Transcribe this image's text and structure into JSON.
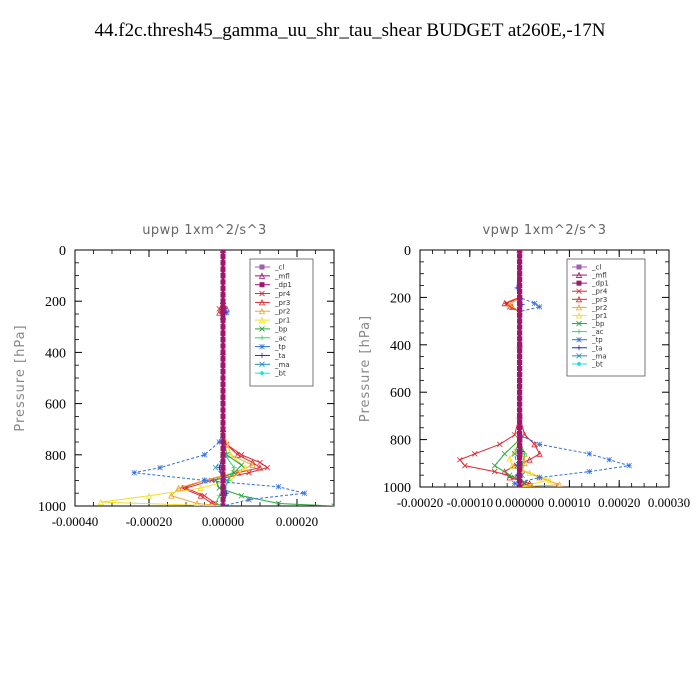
{
  "title": "44.f2c.thresh45_gamma_uu_shr_tau_shear  BUDGET at260E,-17N",
  "legend_labels": [
    "_cl",
    "_mfl",
    "_dp1",
    "_pr4",
    "_pr3",
    "_pr2",
    "_pr1",
    "_bp",
    "_ac",
    "_tp",
    "_ta",
    "_ma",
    "_bt"
  ],
  "legend_colors": [
    "#9f5fb0",
    "#a0166c",
    "#a0166c",
    "#e0262e",
    "#e0262e",
    "#f2a62c",
    "#f0e02a",
    "#25a83a",
    "#2fd86a",
    "#2f6fe0",
    "#2727d0",
    "#1f8fb8",
    "#1ae0e0"
  ],
  "chart_data": [
    {
      "type": "line",
      "title": "upwp   1xm^2/s^3",
      "ylabel": "Pressure [hPa]",
      "xlim": [
        -0.0004,
        0.0003
      ],
      "ylim": [
        1000,
        0
      ],
      "xticks": [
        "-0.00040",
        "-0.00020",
        "0.00000",
        "0.00020"
      ],
      "yticks": [
        "0",
        "200",
        "400",
        "600",
        "800",
        "1000"
      ],
      "series": [
        {
          "name": "_cl",
          "y": [
            0,
            200,
            230,
            260,
            400,
            700,
            800,
            850,
            900,
            950,
            1000
          ],
          "x": [
            0,
            0,
            0,
            0,
            0,
            0,
            0,
            0,
            0,
            0,
            0
          ]
        },
        {
          "name": "_mfl",
          "y": [
            0,
            200,
            230,
            260,
            400,
            700,
            800,
            850,
            900,
            950,
            1000
          ],
          "x": [
            0,
            0,
            0,
            0,
            0,
            0,
            0,
            0,
            0,
            0,
            0
          ]
        },
        {
          "name": "_dp1",
          "y": [
            0,
            200,
            230,
            260,
            400,
            700,
            800,
            850,
            900,
            950,
            1000
          ],
          "x": [
            0,
            0,
            0,
            0,
            0,
            0,
            0,
            0,
            0,
            0,
            0
          ]
        },
        {
          "name": "_pr4",
          "y": [
            0,
            200,
            230,
            245,
            260,
            700,
            760,
            800,
            830,
            850,
            870,
            900,
            930,
            960,
            990,
            1000
          ],
          "x": [
            0,
            0,
            -1e-05,
            5e-06,
            0,
            0,
            1e-05,
            5e-05,
            0.0001,
            0.00012,
            7e-05,
            -3e-05,
            -0.0001,
            -5e-05,
            -2e-05,
            0
          ]
        },
        {
          "name": "_pr3",
          "y": [
            0,
            200,
            230,
            245,
            260,
            700,
            760,
            800,
            830,
            850,
            870,
            900,
            930,
            960,
            990,
            1000
          ],
          "x": [
            0,
            0,
            1e-05,
            -1e-05,
            0,
            0,
            1e-05,
            4e-05,
            8e-05,
            0.0001,
            4e-05,
            -5e-05,
            -0.00011,
            -6e-05,
            -3e-05,
            0
          ]
        },
        {
          "name": "_pr2",
          "y": [
            0,
            700,
            800,
            840,
            870,
            900,
            930,
            960,
            990,
            1000
          ],
          "x": [
            0,
            0,
            2e-05,
            8e-05,
            3e-05,
            -5e-05,
            -0.00012,
            -0.00014,
            -7e-05,
            0
          ]
        },
        {
          "name": "_pr1",
          "y": [
            0,
            700,
            800,
            850,
            900,
            930,
            960,
            985,
            1000
          ],
          "x": [
            0,
            0,
            2e-05,
            6e-05,
            2e-05,
            -6e-05,
            -0.0002,
            -0.00033,
            0
          ]
        },
        {
          "name": "_bp",
          "y": [
            0,
            700,
            800,
            840,
            870,
            900,
            930,
            960,
            990,
            1000
          ],
          "x": [
            0,
            0,
            1e-05,
            5e-05,
            3e-05,
            -2e-05,
            -1e-05,
            5e-05,
            0.00015,
            0.0003
          ]
        },
        {
          "name": "_ac",
          "y": [
            0,
            700,
            800,
            850,
            900,
            930,
            960,
            990,
            1000
          ],
          "x": [
            0,
            0,
            5e-06,
            3e-05,
            1.5e-05,
            5e-06,
            -1e-05,
            -2e-05,
            0
          ]
        },
        {
          "name": "_tp",
          "y": [
            0,
            200,
            230,
            245,
            260,
            700,
            750,
            800,
            850,
            870,
            900,
            925,
            950,
            975,
            1000
          ],
          "x": [
            0,
            0,
            5e-06,
            1e-05,
            0,
            0,
            -1e-05,
            -5e-05,
            -0.00017,
            -0.00024,
            -5e-05,
            0.00015,
            0.00022,
            7e-05,
            0
          ]
        },
        {
          "name": "_ta",
          "y": [
            0,
            200,
            230,
            245,
            260,
            700,
            800,
            850,
            900,
            950,
            1000
          ],
          "x": [
            0,
            0,
            0,
            5e-06,
            0,
            0,
            0,
            -1e-05,
            0,
            1e-05,
            0
          ]
        },
        {
          "name": "_ma",
          "y": [
            0,
            700,
            800,
            850,
            900,
            950,
            1000
          ],
          "x": [
            0,
            0,
            5e-06,
            -2e-05,
            1e-05,
            5e-06,
            0
          ]
        },
        {
          "name": "_bt",
          "y": [
            0,
            200,
            400,
            700,
            800,
            850,
            900,
            950,
            1000
          ],
          "x": [
            0,
            0,
            0,
            0,
            0,
            0,
            0,
            0,
            0
          ]
        }
      ]
    },
    {
      "type": "line",
      "title": "vpwp   1xm^2/s^3",
      "ylabel": "Pressure [hPa]",
      "xlim": [
        -0.0002,
        0.0003
      ],
      "ylim": [
        1000,
        0
      ],
      "xticks": [
        "-0.00020",
        "-0.00010",
        "0.000000",
        "0.00010",
        "0.00020",
        "0.00030"
      ],
      "yticks": [
        "0",
        "200",
        "400",
        "600",
        "800",
        "1000"
      ],
      "series": [
        {
          "name": "_cl",
          "y": [
            0,
            200,
            400,
            700,
            800,
            850,
            900,
            950,
            1000
          ],
          "x": [
            0,
            0,
            0,
            0,
            0,
            0,
            0,
            0,
            0
          ]
        },
        {
          "name": "_mfl",
          "y": [
            0,
            200,
            400,
            700,
            800,
            850,
            900,
            950,
            1000
          ],
          "x": [
            0,
            0,
            0,
            0,
            0,
            0,
            0,
            0,
            0
          ]
        },
        {
          "name": "_dp1",
          "y": [
            0,
            200,
            400,
            700,
            800,
            850,
            900,
            950,
            1000
          ],
          "x": [
            0,
            0,
            0,
            0,
            0,
            0,
            0,
            0,
            0
          ]
        },
        {
          "name": "_pr4",
          "y": [
            0,
            200,
            225,
            240,
            260,
            700,
            780,
            820,
            860,
            885,
            910,
            935,
            960,
            985,
            1000
          ],
          "x": [
            0,
            0,
            -2.5e-05,
            -2e-05,
            0,
            0,
            -1e-05,
            -4e-05,
            -9e-05,
            -0.00012,
            -0.00011,
            -5e-05,
            -1e-05,
            1e-05,
            0
          ]
        },
        {
          "name": "_pr3",
          "y": [
            0,
            200,
            225,
            240,
            260,
            700,
            780,
            820,
            860,
            885,
            910,
            935,
            960,
            985,
            1000
          ],
          "x": [
            0,
            0,
            -3e-05,
            -1.5e-05,
            0,
            0,
            1e-05,
            3e-05,
            4e-05,
            2e-05,
            -1e-05,
            -3e-05,
            -2e-05,
            2e-05,
            0
          ]
        },
        {
          "name": "_pr2",
          "y": [
            0,
            200,
            230,
            260,
            700,
            800,
            860,
            900,
            930,
            960,
            990,
            1000
          ],
          "x": [
            0,
            0,
            -2e-05,
            0,
            0,
            0,
            1e-05,
            1e-05,
            5e-06,
            4e-05,
            8e-05,
            0
          ]
        },
        {
          "name": "_pr1",
          "y": [
            0,
            700,
            800,
            850,
            880,
            910,
            940,
            970,
            1000
          ],
          "x": [
            0,
            0,
            0,
            -1e-05,
            -2e-05,
            -1.5e-05,
            2e-05,
            6e-05,
            0
          ]
        },
        {
          "name": "_bp",
          "y": [
            0,
            700,
            800,
            860,
            910,
            950,
            980,
            1000
          ],
          "x": [
            0,
            0,
            0,
            -3e-05,
            -5e-05,
            -2e-05,
            1e-05,
            0
          ]
        },
        {
          "name": "_ac",
          "y": [
            0,
            700,
            800,
            860,
            910,
            950,
            1000
          ],
          "x": [
            0,
            0,
            0,
            1e-05,
            5e-06,
            -5e-06,
            0
          ]
        },
        {
          "name": "_tp",
          "y": [
            0,
            160,
            200,
            225,
            240,
            260,
            700,
            780,
            820,
            860,
            885,
            910,
            935,
            960,
            985,
            1000
          ],
          "x": [
            0,
            0,
            0,
            3e-05,
            4e-05,
            0,
            0,
            0,
            4e-05,
            0.00014,
            0.00018,
            0.00022,
            0.00014,
            4e-05,
            -1e-05,
            0
          ]
        },
        {
          "name": "_ta",
          "y": [
            0,
            160,
            200,
            230,
            260,
            700,
            800,
            850,
            900,
            950,
            1000
          ],
          "x": [
            0,
            -5e-06,
            0,
            5e-06,
            0,
            0,
            0,
            5e-06,
            0,
            -5e-06,
            0
          ]
        },
        {
          "name": "_ma",
          "y": [
            0,
            700,
            800,
            860,
            910,
            950,
            1000
          ],
          "x": [
            0,
            0,
            0,
            -1e-05,
            -5e-06,
            5e-06,
            0
          ]
        },
        {
          "name": "_bt",
          "y": [
            0,
            200,
            400,
            700,
            800,
            850,
            900,
            950,
            1000
          ],
          "x": [
            0,
            0,
            0,
            0,
            0,
            0,
            0,
            0,
            0
          ]
        }
      ]
    }
  ]
}
